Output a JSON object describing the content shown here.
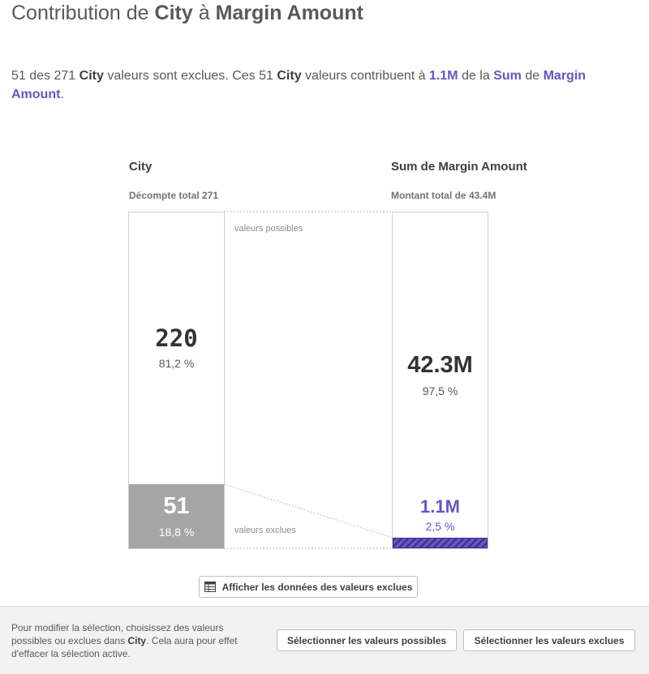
{
  "title": {
    "prefix": "Contribution de",
    "dimension": "City",
    "middle": "à",
    "measure": "Margin Amount"
  },
  "summary": {
    "excluded_count": "51",
    "t1": "des",
    "total_count": "271",
    "dimension": "City",
    "t2": "valeurs sont exclues. Ces",
    "t3": "valeurs contribuent à",
    "excluded_value": "1.1M",
    "t4": "de la",
    "aggregation": "Sum",
    "t5": "de",
    "measure": "Margin Amount",
    "end": "."
  },
  "left_column": {
    "header": "City",
    "subheader": "Décompte total 271",
    "possible_value": "220",
    "possible_pct": "81,2 %",
    "excluded_value": "51",
    "excluded_pct": "18,8 %"
  },
  "right_column": {
    "header": "Sum de Margin Amount",
    "subheader": "Montant total de 43.4M",
    "possible_value": "42.3M",
    "possible_pct": "97,5 %",
    "excluded_value": "1.1M",
    "excluded_pct": "2,5 %"
  },
  "connector": {
    "possible_label": "valeurs possibles",
    "excluded_label": "valeurs exclues"
  },
  "show_data_button": "Afficher les données des valeurs exclues",
  "footer": {
    "text1": "Pour modifier la sélection, choisissez des valeurs possibles ou exclues dans",
    "dimension": "City",
    "text2": ". Cela aura pour effet d'effacer la sélection active.",
    "select_possible_button": "Sélectionner les valeurs possibles",
    "select_excluded_button": "Sélectionner les valeurs exclues"
  },
  "colors": {
    "accent": "#6556c4",
    "excluded_gray": "#a5a5a5",
    "text": "#595959"
  },
  "icons": {
    "table": "table-icon"
  }
}
